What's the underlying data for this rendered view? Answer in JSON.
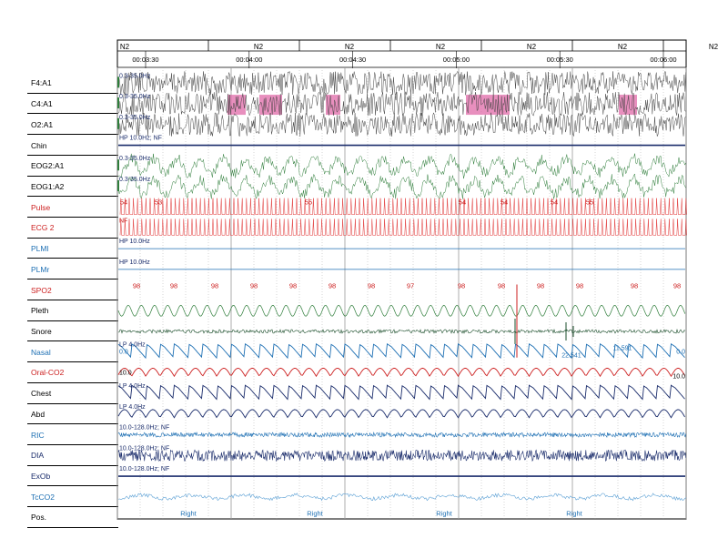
{
  "chart_data": {
    "type": "line",
    "title": "",
    "stages": [
      "N2",
      "N2",
      "N2",
      "N2",
      "N2",
      "N2",
      "N2"
    ],
    "times": [
      "00:03:30",
      "00:04:00",
      "00:04:30",
      "00:05:00",
      "00:05:30",
      "00:06:00"
    ],
    "channels": [
      {
        "label": "F4:A1",
        "color": "#000000",
        "trace": "#444444",
        "kind": "eeg",
        "note": "0.3-35.0Hz"
      },
      {
        "label": "C4:A1",
        "color": "#000000",
        "trace": "#444444",
        "kind": "eeg",
        "note": "0.3-35.0Hz"
      },
      {
        "label": "O2:A1",
        "color": "#000000",
        "trace": "#444444",
        "kind": "eeg",
        "note": "0.3-35.0Hz"
      },
      {
        "label": "Chin",
        "color": "#000000",
        "trace": "#1a2c6b",
        "kind": "flat",
        "note": "HP 10.0Hz; NF"
      },
      {
        "label": "EOG2:A1",
        "color": "#000000",
        "trace": "#2e7d3a",
        "kind": "eog",
        "note": "0.3-35.0Hz"
      },
      {
        "label": "EOG1:A2",
        "color": "#000000",
        "trace": "#2e7d3a",
        "kind": "eog",
        "note": "0.3-35.0Hz"
      },
      {
        "label": "Pulse",
        "color": "#cc1f1f",
        "trace": "#e03030",
        "kind": "spikes",
        "note": ""
      },
      {
        "label": "ECG 2",
        "color": "#cc1f1f",
        "trace": "#e03030",
        "kind": "spikes",
        "note": "NF"
      },
      {
        "label": "PLMl",
        "color": "#1d6fb3",
        "trace": "#1d6fb3",
        "kind": "flat",
        "note": "HP 10.0Hz"
      },
      {
        "label": "PLMr",
        "color": "#1d6fb3",
        "trace": "#1d6fb3",
        "kind": "flat",
        "note": "HP 10.0Hz"
      },
      {
        "label": "SPO2",
        "color": "#cc1f1f",
        "trace": "#cc1f1f",
        "kind": "none",
        "note": ""
      },
      {
        "label": "Pleth",
        "color": "#000000",
        "trace": "#2e7d3a",
        "kind": "pleth",
        "note": ""
      },
      {
        "label": "Snore",
        "color": "#000000",
        "trace": "#1a4d2a",
        "kind": "snore",
        "note": ""
      },
      {
        "label": "Nasal",
        "color": "#1d6fb3",
        "trace": "#1d6fb3",
        "kind": "resp",
        "note": "LP 4.0Hz"
      },
      {
        "label": "Oral-CO2",
        "color": "#cc1f1f",
        "trace": "#cc1f1f",
        "kind": "resp2",
        "note": ""
      },
      {
        "label": "Chest",
        "color": "#000000",
        "trace": "#1a2c6b",
        "kind": "resp",
        "note": "LP 4.0Hz"
      },
      {
        "label": "Abd",
        "color": "#000000",
        "trace": "#1a2c6b",
        "kind": "resp2",
        "note": "LP 4.0Hz"
      },
      {
        "label": "RIC",
        "color": "#1d6fb3",
        "trace": "#1d6fb3",
        "kind": "band",
        "note": "10.0-128.0Hz; NF"
      },
      {
        "label": "DIA",
        "color": "#1a2c6b",
        "trace": "#1a2c6b",
        "kind": "band",
        "note": "10.0-128.0Hz; NF"
      },
      {
        "label": "ExOb",
        "color": "#1a2c6b",
        "trace": "#1a2c6b",
        "kind": "flat",
        "note": "10.0-128.0Hz; NF"
      },
      {
        "label": "TcCO2",
        "color": "#1d6fb3",
        "trace": "#5a9fd4",
        "kind": "wiggle",
        "note": ""
      },
      {
        "label": "Pos.",
        "color": "#000000",
        "trace": "#000000",
        "kind": "none",
        "note": ""
      }
    ],
    "pulse_values": [
      "54",
      "53",
      "55",
      "54",
      "54",
      "54",
      "55"
    ],
    "spo2_values": [
      "98",
      "98",
      "98",
      "98",
      "98",
      "98",
      "98",
      "97",
      "98",
      "98",
      "98",
      "98",
      "98",
      "98"
    ],
    "nasal_scale": "0.0",
    "nasal_right": "0.0",
    "oralco2_scale": "10.0",
    "oralco2_right": "10.0",
    "co2_readings": [
      "11.591",
      "22.541"
    ],
    "position_values": [
      "Right",
      "Right",
      "Right",
      "Right"
    ],
    "colors": {
      "grid": "#9a9a9a",
      "arousal": "#e06aa8",
      "frame": "#000000"
    }
  }
}
